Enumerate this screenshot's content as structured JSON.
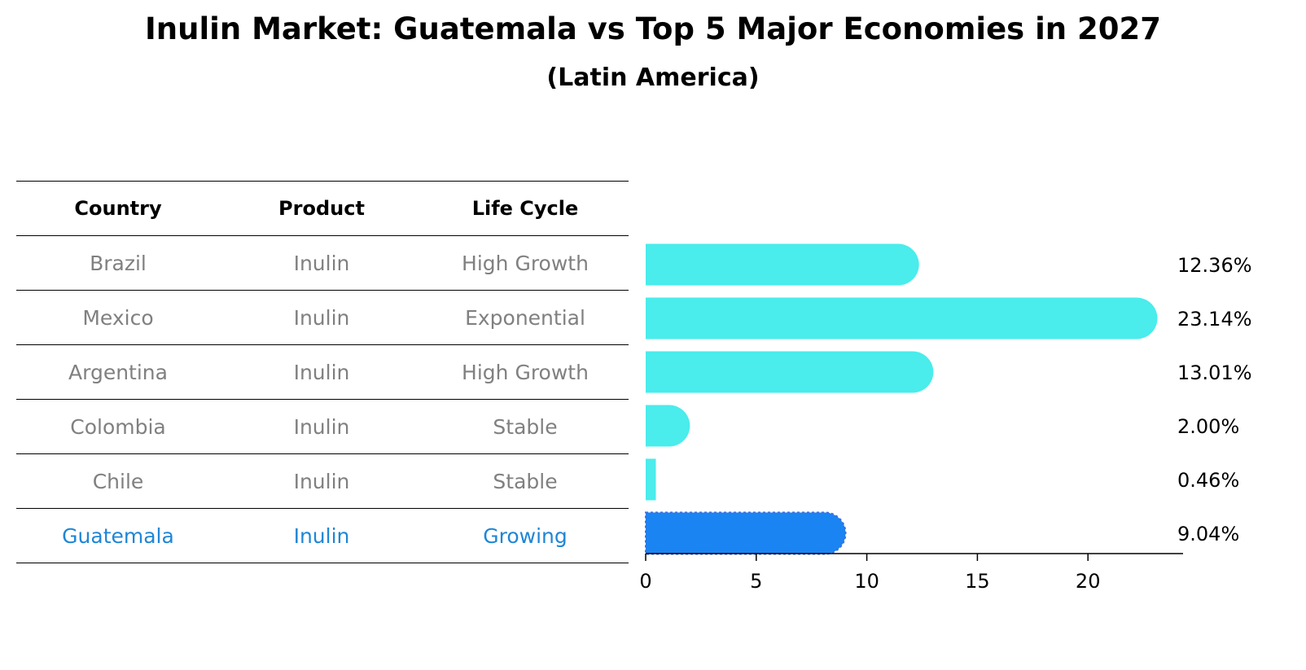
{
  "title": "Inulin Market: Guatemala vs Top 5 Major Economies in 2027",
  "subtitle": "(Latin America)",
  "table": {
    "headers": [
      "Country",
      "Product",
      "Life Cycle"
    ],
    "rows": [
      [
        "Brazil",
        "Inulin",
        "High Growth"
      ],
      [
        "Mexico",
        "Inulin",
        "Exponential"
      ],
      [
        "Argentina",
        "Inulin",
        "High Growth"
      ],
      [
        "Colombia",
        "Inulin",
        "Stable"
      ],
      [
        "Chile",
        "Inulin",
        "Stable"
      ],
      [
        "Guatemala",
        "Inulin",
        "Growing"
      ]
    ],
    "highlight_row": 5
  },
  "chart_data": {
    "type": "bar",
    "orientation": "horizontal",
    "categories": [
      "Brazil",
      "Mexico",
      "Argentina",
      "Colombia",
      "Chile",
      "Guatemala"
    ],
    "values": [
      12.36,
      23.14,
      13.01,
      2.0,
      0.46,
      9.04
    ],
    "labels": [
      "12.36%",
      "23.14%",
      "13.01%",
      "2.00%",
      "0.46%",
      "9.04%"
    ],
    "xticks": [
      0,
      5,
      10,
      15,
      20
    ],
    "xlim": [
      0,
      24.3
    ],
    "highlight_index": 5,
    "colors": {
      "default": "#4aecec",
      "highlight": "#1a84f2"
    }
  },
  "colors": {
    "muted_text": "#808080",
    "highlight_text": "#1f86d6"
  }
}
